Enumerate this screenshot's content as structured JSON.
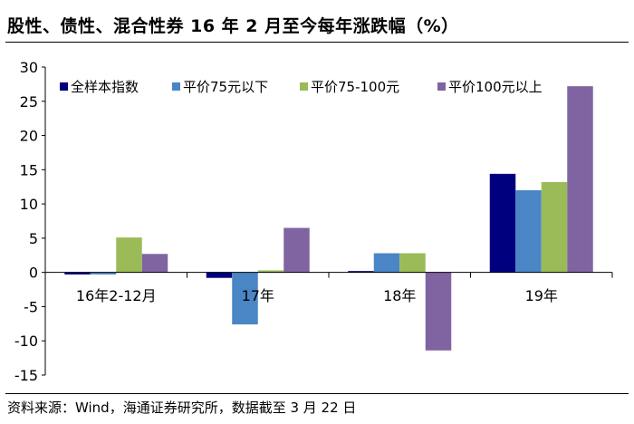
{
  "title": "股性、债性、混合性券 16 年 2 月至今每年涨跌幅（%）",
  "source": "资料来源：Wind，海通证券研究所，数据截至 3 月 22 日",
  "chart_data": {
    "type": "bar",
    "title": "股性、债性、混合性券 16 年 2 月至今每年涨跌幅（%）",
    "xlabel": "",
    "ylabel": "",
    "ylim": [
      -15,
      30
    ],
    "yticks": [
      -15,
      -10,
      -5,
      0,
      5,
      10,
      15,
      20,
      25,
      30
    ],
    "yticklabels": [
      "-15",
      "-10",
      "-5",
      "0",
      "5",
      "10",
      "15",
      "20",
      "25",
      "30"
    ],
    "categories": [
      "16年2-12月",
      "17年",
      "18年",
      "19年"
    ],
    "legend_position": "top",
    "series": [
      {
        "name": "全样本指数",
        "color": "#00007F",
        "values": [
          -0.3,
          -0.8,
          0.2,
          14.4
        ]
      },
      {
        "name": "平价75元以下",
        "color": "#4A86C5",
        "values": [
          -0.3,
          -7.6,
          2.8,
          12.0
        ]
      },
      {
        "name": "平价75-100元",
        "color": "#9BBB59",
        "values": [
          5.1,
          0.3,
          2.8,
          13.2
        ]
      },
      {
        "name": "平价100元以上",
        "color": "#8064A2",
        "values": [
          2.7,
          6.5,
          -11.4,
          27.2
        ]
      }
    ]
  }
}
